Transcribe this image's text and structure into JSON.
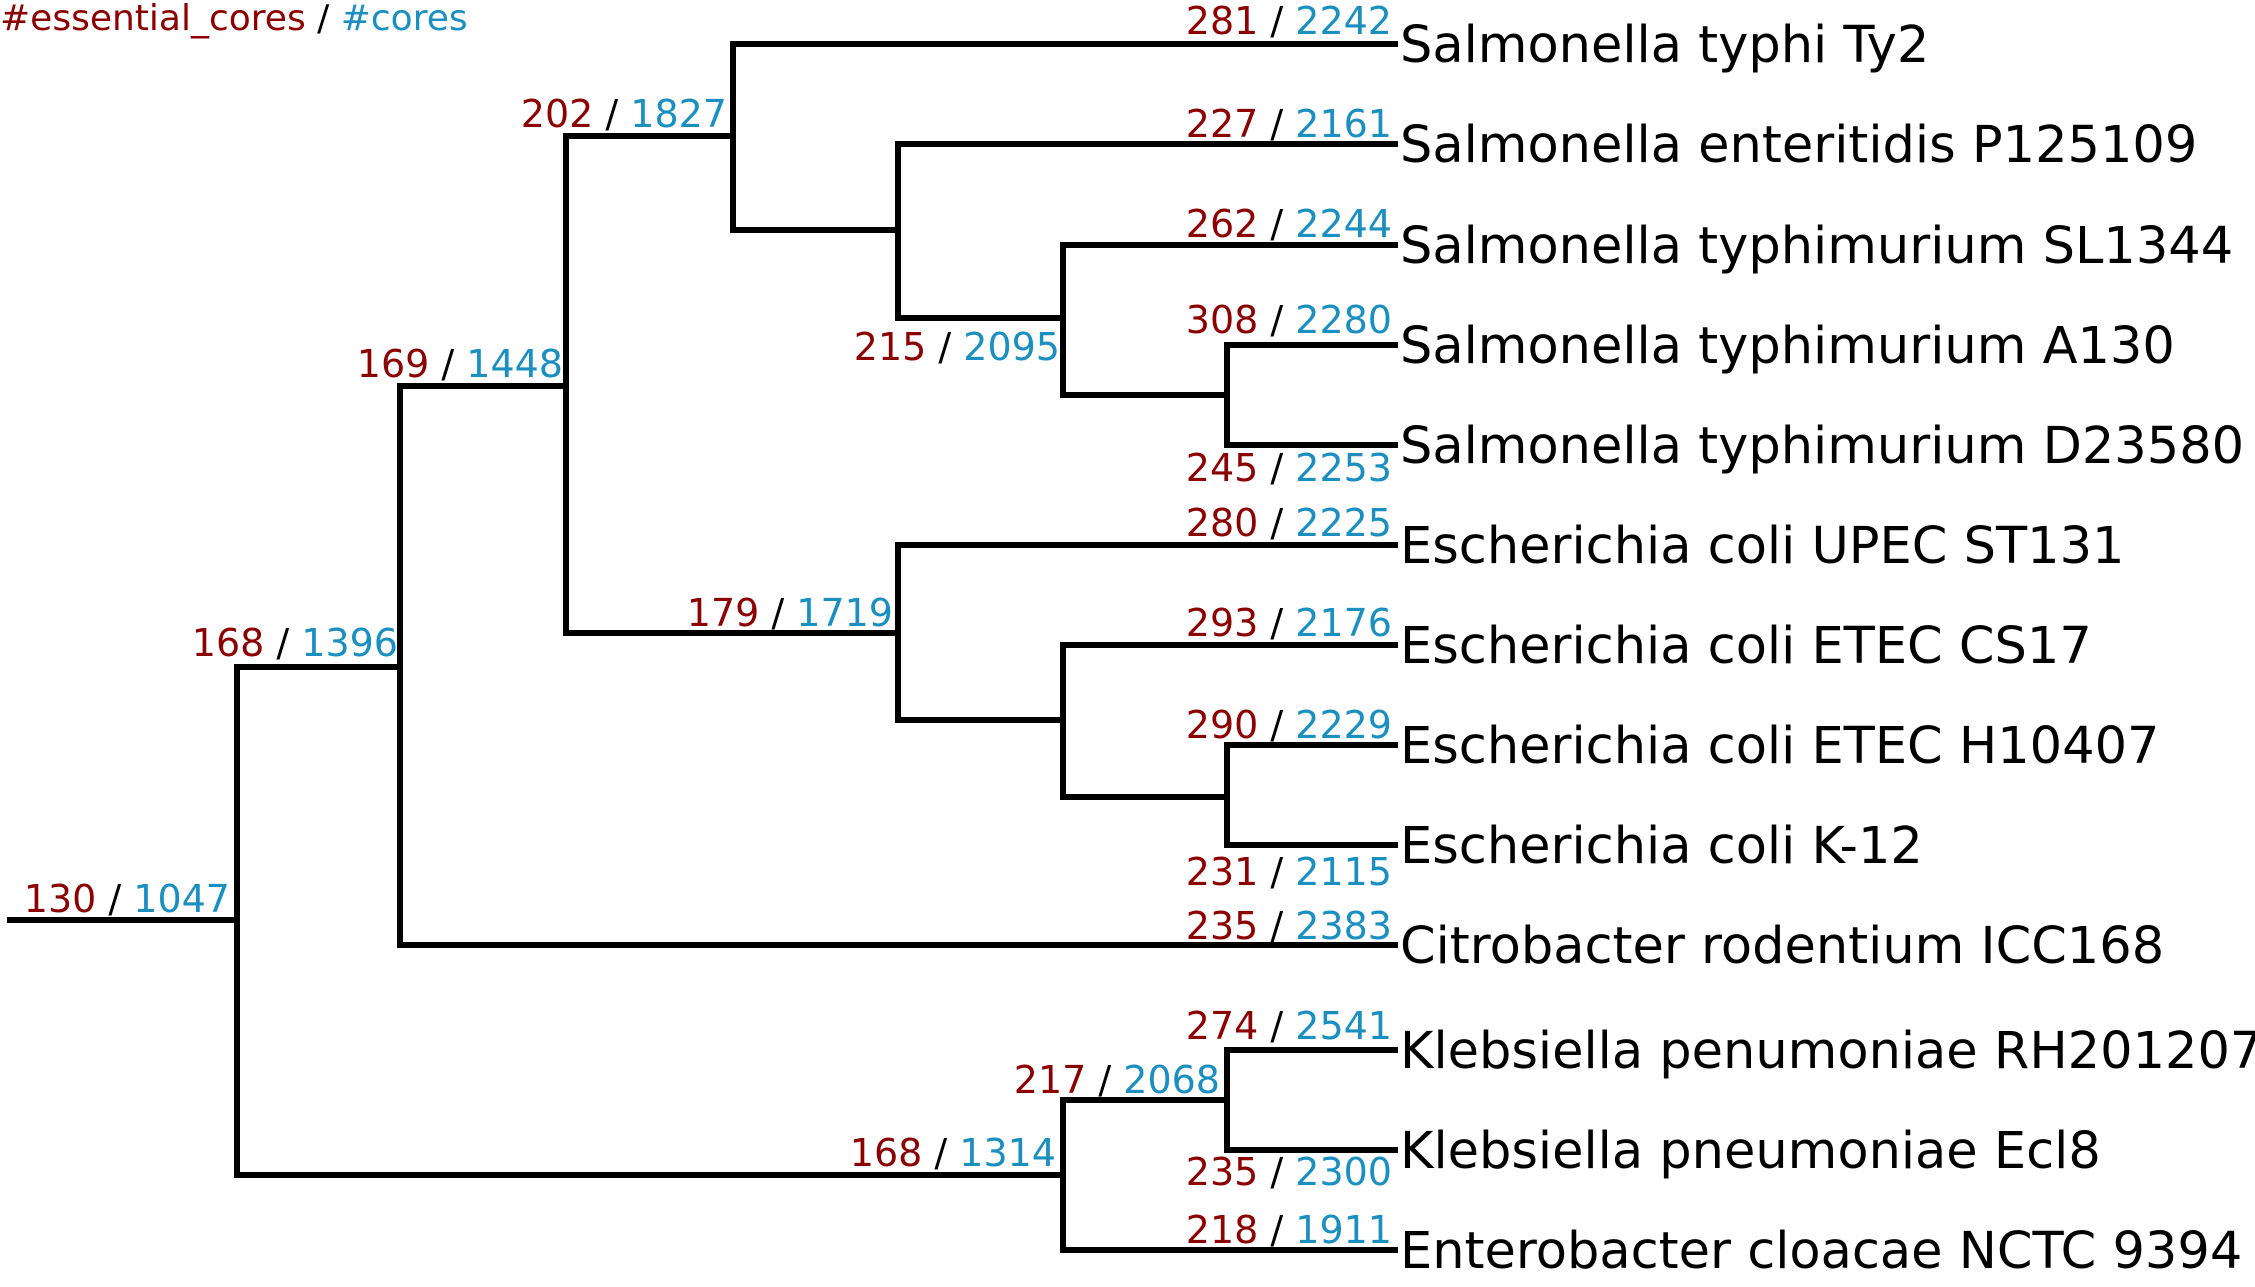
{
  "legend": {
    "essential_label": "#essential_cores",
    "separator": " / ",
    "cores_label": "#cores"
  },
  "colors": {
    "essential": "#8b0000",
    "cores": "#1b8fc0",
    "branch": "#000000"
  },
  "taxa": [
    {
      "name": "Salmonella typhi Ty2",
      "essential": "281",
      "cores": "2242"
    },
    {
      "name": "Salmonella enteritidis P125109",
      "essential": "227",
      "cores": "2161"
    },
    {
      "name": "Salmonella typhimurium SL1344",
      "essential": "262",
      "cores": "2244"
    },
    {
      "name": "Salmonella typhimurium A130",
      "essential": "308",
      "cores": "2280"
    },
    {
      "name": "Salmonella typhimurium D23580",
      "essential": "245",
      "cores": "2253"
    },
    {
      "name": "Escherichia coli UPEC ST131",
      "essential": "280",
      "cores": "2225"
    },
    {
      "name": "Escherichia coli ETEC CS17",
      "essential": "293",
      "cores": "2176"
    },
    {
      "name": "Escherichia coli ETEC H10407",
      "essential": "290",
      "cores": "2229"
    },
    {
      "name": "Escherichia coli K-12",
      "essential": "231",
      "cores": "2115"
    },
    {
      "name": "Citrobacter rodentium ICC168",
      "essential": "235",
      "cores": "2383"
    },
    {
      "name": "Klebsiella penumoniae RH201207",
      "essential": "274",
      "cores": "2541"
    },
    {
      "name": "Klebsiella pneumoniae Ecl8",
      "essential": "235",
      "cores": "2300"
    },
    {
      "name": "Enterobacter cloacae NCTC 9394",
      "essential": "218",
      "cores": "1911"
    }
  ],
  "internal_nodes": [
    {
      "id": "root",
      "essential": "130",
      "cores": "1047"
    },
    {
      "id": "n168a",
      "essential": "168",
      "cores": "1396"
    },
    {
      "id": "n169",
      "essential": "169",
      "cores": "1448"
    },
    {
      "id": "n202",
      "essential": "202",
      "cores": "1827"
    },
    {
      "id": "n215",
      "essential": "215",
      "cores": "2095"
    },
    {
      "id": "n179",
      "essential": "179",
      "cores": "1719"
    },
    {
      "id": "n168b",
      "essential": "168",
      "cores": "1314"
    },
    {
      "id": "n217",
      "essential": "217",
      "cores": "2068"
    }
  ]
}
